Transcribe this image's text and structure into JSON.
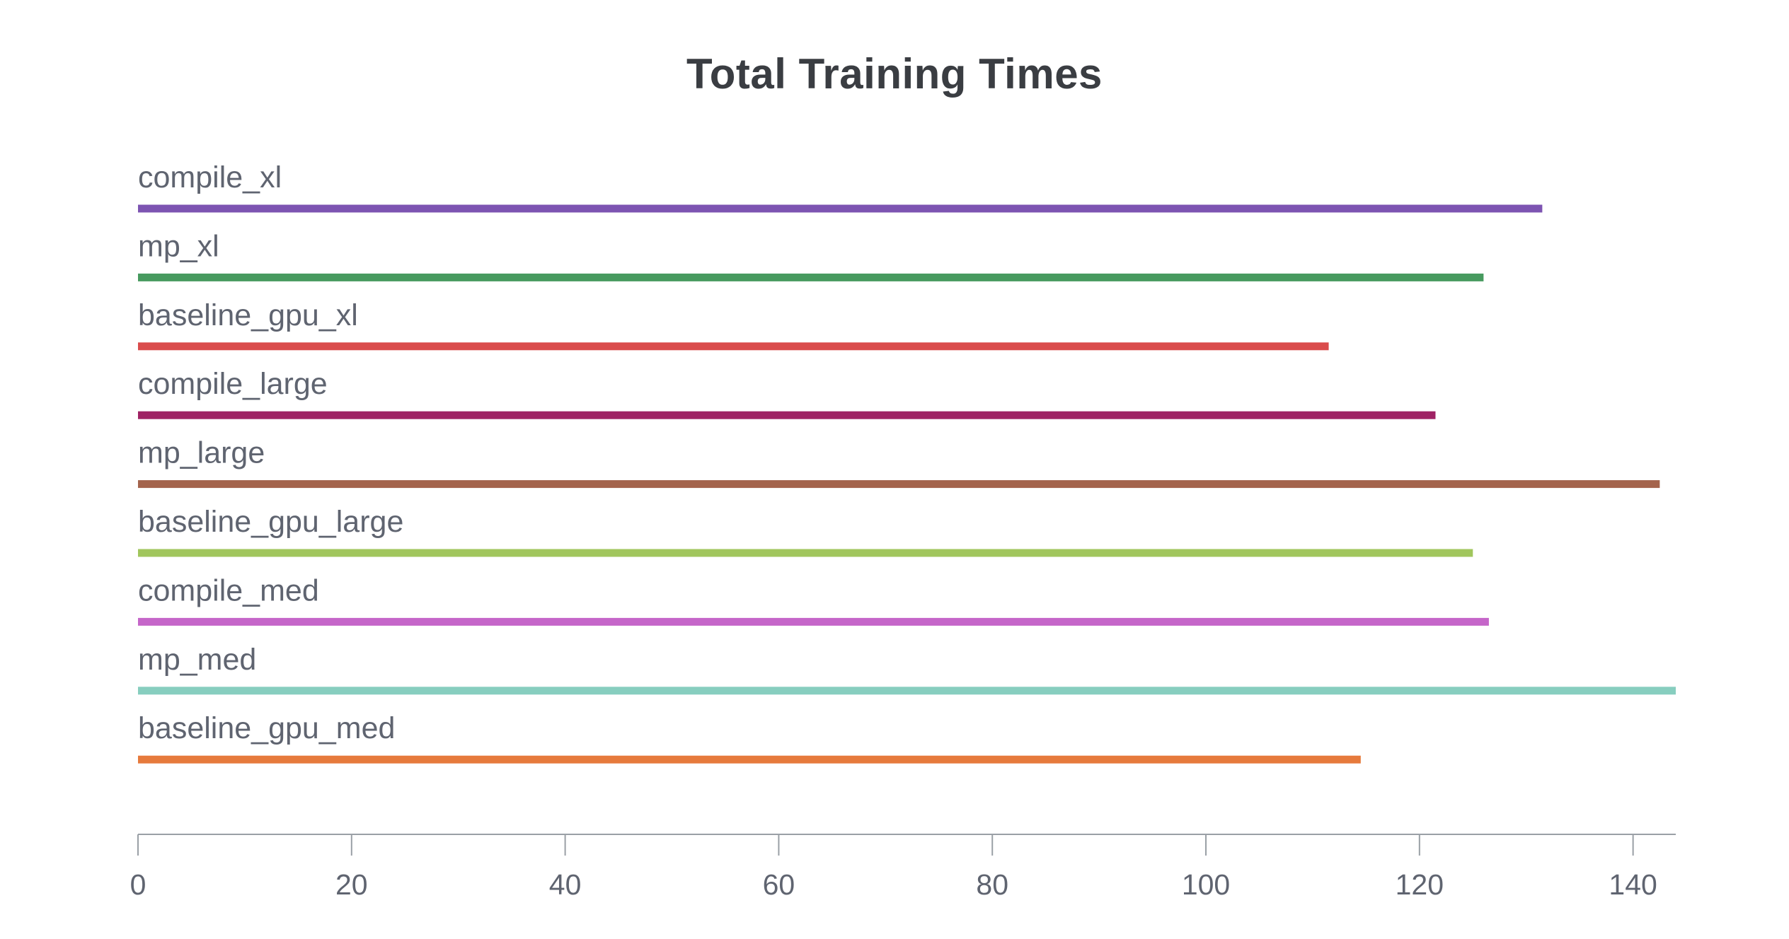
{
  "chart_data": {
    "type": "bar",
    "orientation": "horizontal",
    "title": "Total Training Times",
    "xlabel": "",
    "ylabel": "",
    "xlim": [
      0,
      144
    ],
    "grid": false,
    "legend": "none",
    "x_ticks": [
      "0",
      "20",
      "40",
      "60",
      "80",
      "100",
      "120",
      "140"
    ],
    "categories": [
      "compile_xl",
      "mp_xl",
      "baseline_gpu_xl",
      "compile_large",
      "mp_large",
      "baseline_gpu_large",
      "compile_med",
      "mp_med",
      "baseline_gpu_med"
    ],
    "values": [
      131.5,
      126,
      111.5,
      121.5,
      142.5,
      125,
      126.5,
      144,
      114.5
    ],
    "colors": [
      "#7d54b2",
      "#479a5f",
      "#da4c4c",
      "#9f2264",
      "#a4644c",
      "#a1c65d",
      "#c566c9",
      "#87cebf",
      "#e67a3c"
    ]
  },
  "style": {
    "axis_color": "#9aa0a6"
  }
}
